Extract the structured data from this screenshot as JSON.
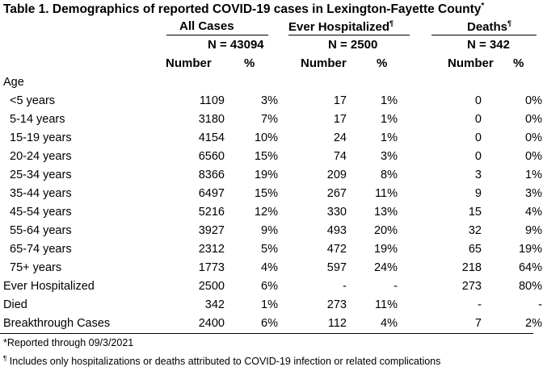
{
  "title": "Table 1. Demographics of reported COVID-19 cases in Lexington-Fayette County",
  "title_mark": "*",
  "groups": [
    {
      "label": "All Cases",
      "mark": "",
      "n": "N = 43094"
    },
    {
      "label": "Ever Hospitalized",
      "mark": "¶",
      "n": "N = 2500"
    },
    {
      "label": "Deaths",
      "mark": "¶",
      "n": "N = 342"
    }
  ],
  "col_number": "Number",
  "col_pct": "%",
  "section_age": "Age",
  "rows": [
    {
      "label": "<5 years",
      "vals": [
        "1109",
        "3%",
        "17",
        "1%",
        "0",
        "0%"
      ]
    },
    {
      "label": "5-14 years",
      "vals": [
        "3180",
        "7%",
        "17",
        "1%",
        "0",
        "0%"
      ]
    },
    {
      "label": "15-19 years",
      "vals": [
        "4154",
        "10%",
        "24",
        "1%",
        "0",
        "0%"
      ]
    },
    {
      "label": "20-24 years",
      "vals": [
        "6560",
        "15%",
        "74",
        "3%",
        "0",
        "0%"
      ]
    },
    {
      "label": "25-34 years",
      "vals": [
        "8366",
        "19%",
        "209",
        "8%",
        "3",
        "1%"
      ]
    },
    {
      "label": "35-44 years",
      "vals": [
        "6497",
        "15%",
        "267",
        "11%",
        "9",
        "3%"
      ]
    },
    {
      "label": "45-54 years",
      "vals": [
        "5216",
        "12%",
        "330",
        "13%",
        "15",
        "4%"
      ]
    },
    {
      "label": "55-64 years",
      "vals": [
        "3927",
        "9%",
        "493",
        "20%",
        "32",
        "9%"
      ]
    },
    {
      "label": "65-74 years",
      "vals": [
        "2312",
        "5%",
        "472",
        "19%",
        "65",
        "19%"
      ]
    },
    {
      "label": "75+ years",
      "vals": [
        "1773",
        "4%",
        "597",
        "24%",
        "218",
        "64%"
      ]
    }
  ],
  "summary_rows": [
    {
      "label": "Ever Hospitalized",
      "vals": [
        "2500",
        "6%",
        "-",
        "-",
        "273",
        "80%"
      ]
    },
    {
      "label": "Died",
      "vals": [
        "342",
        "1%",
        "273",
        "11%",
        "-",
        "-"
      ]
    },
    {
      "label": "Breakthrough Cases",
      "vals": [
        "2400",
        "6%",
        "112",
        "4%",
        "7",
        "2%"
      ]
    }
  ],
  "footnotes": {
    "reported": "*Reported through 09/3/2021",
    "includes_mark": "¶",
    "includes": " Includes only hospitalizations or deaths attributed to COVID-19 infection or related complications"
  }
}
